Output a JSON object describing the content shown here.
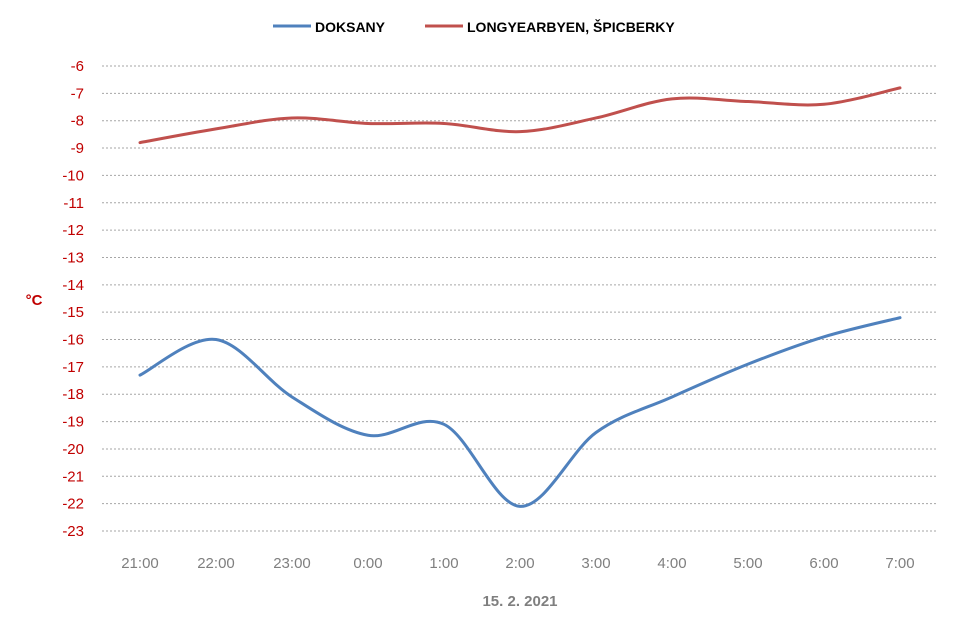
{
  "chart_data": {
    "type": "line",
    "title": "",
    "xlabel": "15. 2. 2021",
    "ylabel": "°C",
    "categories": [
      "21:00",
      "22:00",
      "23:00",
      "0:00",
      "1:00",
      "2:00",
      "3:00",
      "4:00",
      "5:00",
      "6:00",
      "7:00"
    ],
    "yticks": [
      "-6",
      "-7",
      "-8",
      "-9",
      "-10",
      "-11",
      "-12",
      "-13",
      "-14",
      "-15",
      "-16",
      "-17",
      "-18",
      "-19",
      "-20",
      "-21",
      "-22",
      "-23"
    ],
    "ylim": [
      -23,
      -6
    ],
    "grid": true,
    "legend_position": "top",
    "smooth": true,
    "axis_color": "#c00000",
    "series": [
      {
        "name": "DOKSANY",
        "color": "#4f81bd",
        "values": [
          -17.3,
          -16.0,
          -18.1,
          -19.5,
          -19.1,
          -22.1,
          -19.4,
          -18.1,
          -16.9,
          -15.9,
          -15.2
        ]
      },
      {
        "name": "LONGYEARBYEN, ŠPICBERKY",
        "color": "#c0504d",
        "values": [
          -8.8,
          -8.3,
          -7.9,
          -8.1,
          -8.1,
          -8.4,
          -7.9,
          -7.2,
          -7.3,
          -7.4,
          -6.8
        ]
      }
    ]
  }
}
